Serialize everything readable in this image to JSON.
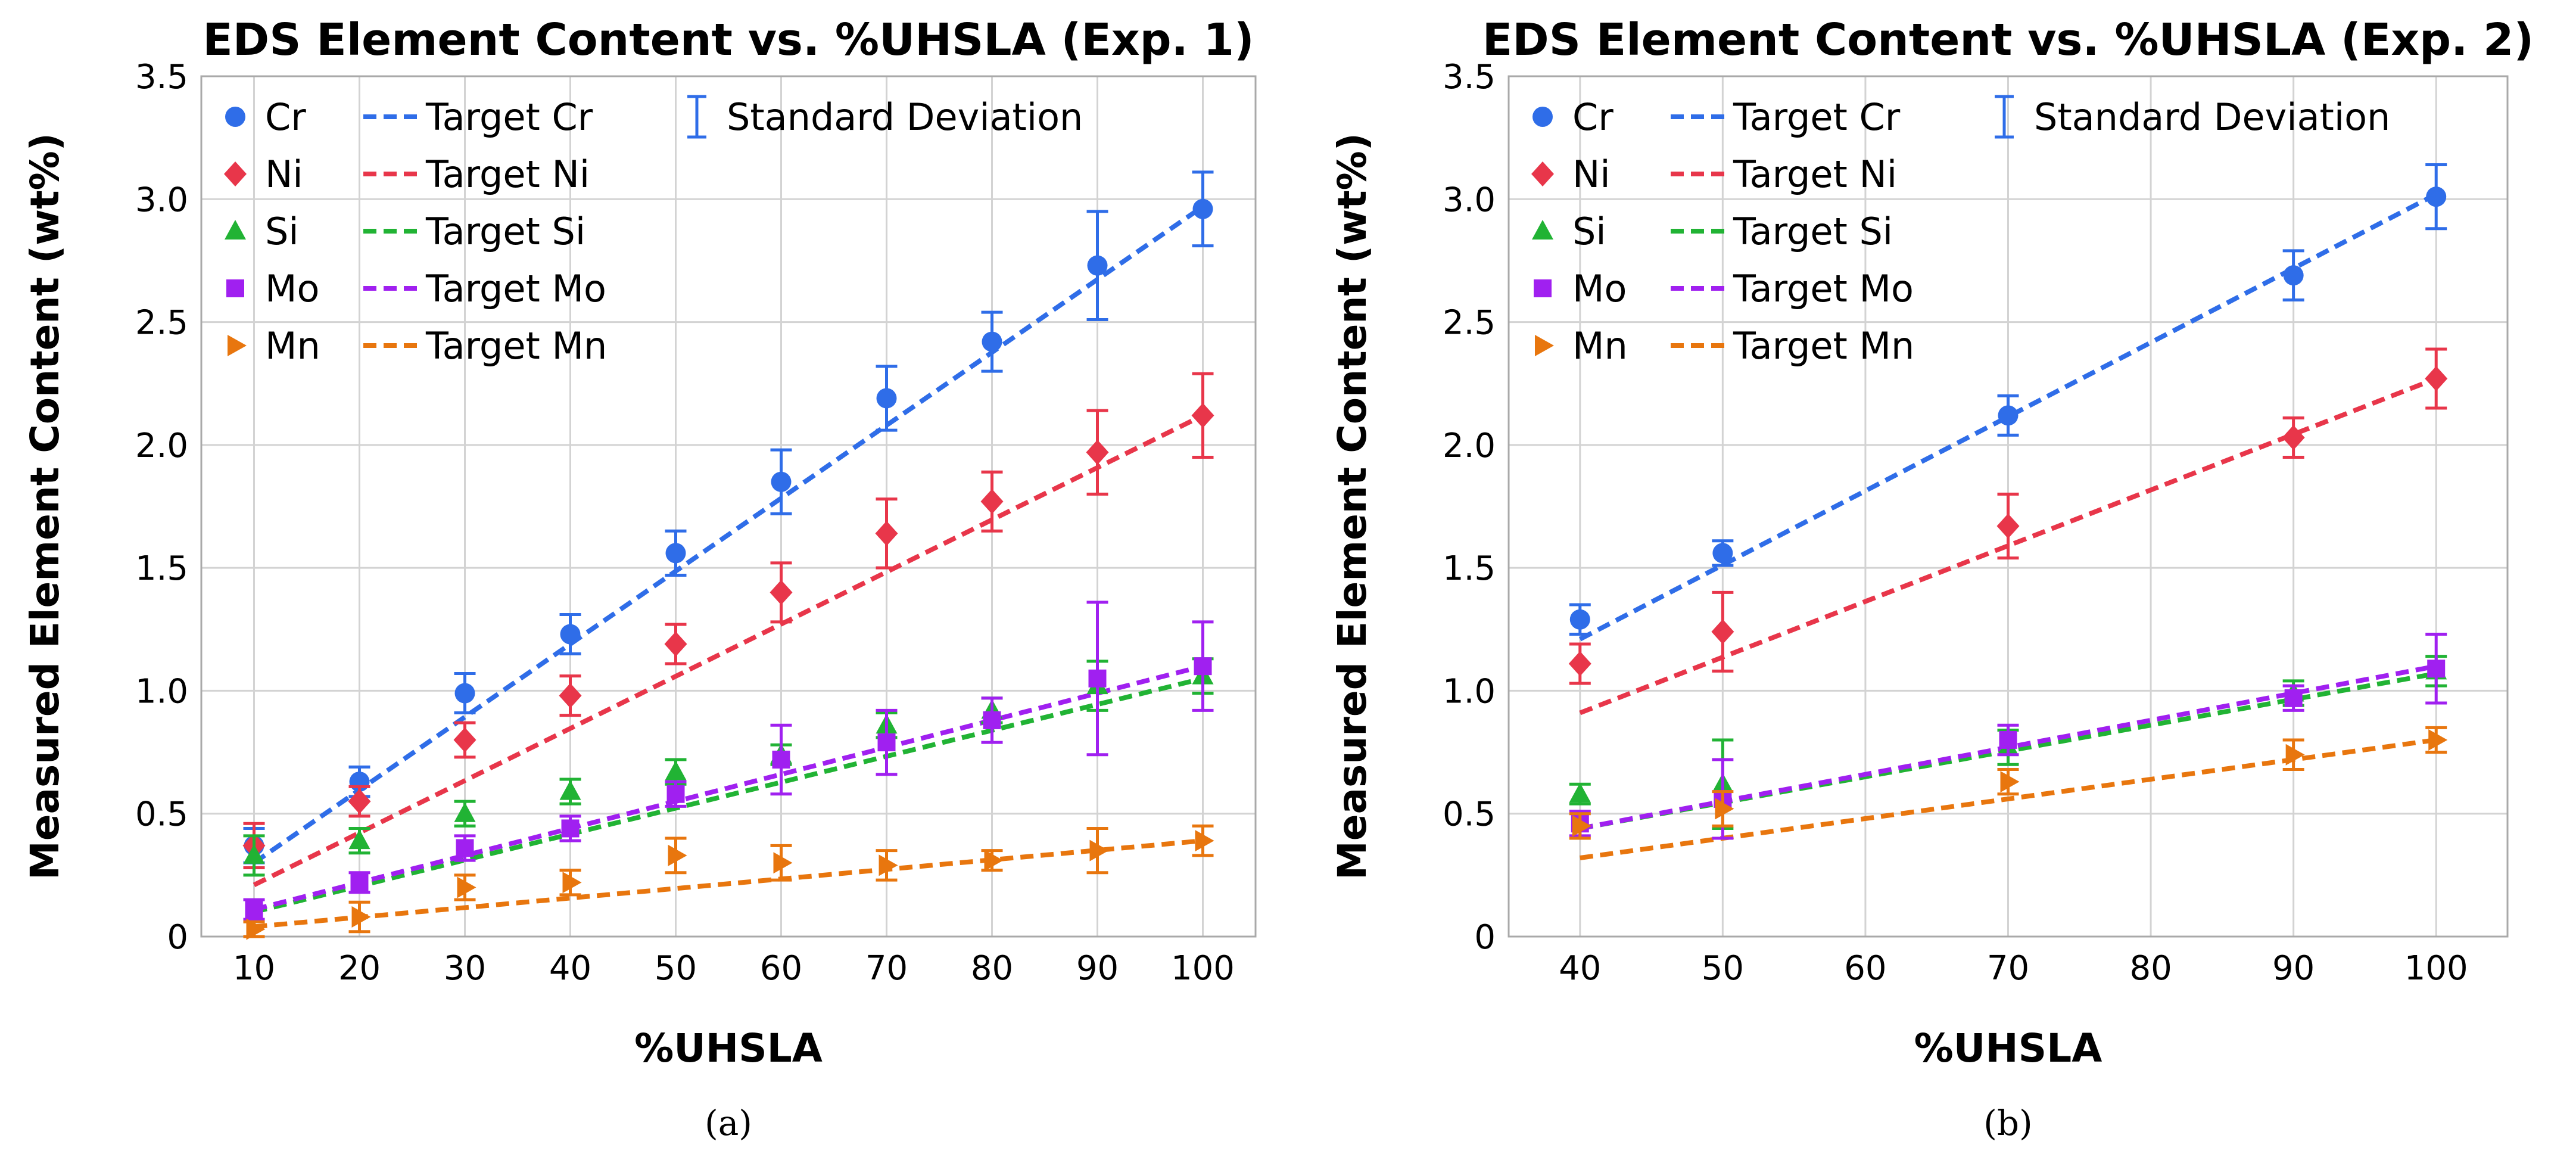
{
  "colors": {
    "Cr": "#2f6de8",
    "Ni": "#e8364a",
    "Si": "#21b334",
    "Mo": "#a020f0",
    "Mn": "#e8760e"
  },
  "legend_labels": {
    "Cr": "Cr",
    "Ni": "Ni",
    "Si": "Si",
    "Mo": "Mo",
    "Mn": "Mn",
    "target_Cr": "Target Cr",
    "target_Ni": "Target Ni",
    "target_Si": "Target Si",
    "target_Mo": "Target Mo",
    "target_Mn": "Target Mn",
    "std": "Standard Deviation"
  },
  "chart_data": [
    {
      "type": "scatter",
      "caption": "(a)",
      "title": "EDS Element Content vs. %UHSLA (Exp. 1)",
      "xlabel": "%UHSLA",
      "ylabel": "Measured Element Content (wt%)",
      "xlim": [
        5,
        105
      ],
      "ylim": [
        0,
        3.5
      ],
      "xticks": [
        10,
        20,
        30,
        40,
        50,
        60,
        70,
        80,
        90,
        100
      ],
      "yticks": [
        0,
        0.5,
        1.0,
        1.5,
        2.0,
        2.5,
        3.0,
        3.5
      ],
      "ytick_labels": [
        "0",
        "0.5",
        "1.0",
        "1.5",
        "2.0",
        "2.5",
        "3.0",
        "3.5"
      ],
      "grid": true,
      "legend_position": "top-left",
      "x": [
        10,
        20,
        30,
        40,
        50,
        60,
        70,
        80,
        90,
        100
      ],
      "series": [
        {
          "element": "Cr",
          "marker": "circle",
          "values": [
            0.37,
            0.63,
            0.99,
            1.23,
            1.56,
            1.85,
            2.19,
            2.42,
            2.73,
            2.96
          ],
          "std": [
            0.07,
            0.06,
            0.08,
            0.08,
            0.09,
            0.13,
            0.13,
            0.12,
            0.22,
            0.15
          ],
          "target": [
            0.3,
            2.97
          ]
        },
        {
          "element": "Ni",
          "marker": "diamond",
          "values": [
            0.37,
            0.55,
            0.8,
            0.98,
            1.19,
            1.4,
            1.64,
            1.77,
            1.97,
            2.12
          ],
          "std": [
            0.09,
            0.06,
            0.07,
            0.08,
            0.08,
            0.12,
            0.14,
            0.12,
            0.17,
            0.17
          ],
          "target": [
            0.21,
            2.12
          ]
        },
        {
          "element": "Si",
          "marker": "triangle",
          "values": [
            0.33,
            0.39,
            0.5,
            0.59,
            0.67,
            0.74,
            0.86,
            0.92,
            1.02,
            1.06
          ],
          "std": [
            0.08,
            0.05,
            0.05,
            0.05,
            0.05,
            0.04,
            0.05,
            0.05,
            0.1,
            0.07
          ],
          "target": [
            0.1,
            1.05
          ]
        },
        {
          "element": "Mo",
          "marker": "square",
          "values": [
            0.11,
            0.22,
            0.36,
            0.44,
            0.58,
            0.72,
            0.79,
            0.88,
            1.05,
            1.1
          ],
          "std": [
            0.04,
            0.04,
            0.05,
            0.05,
            0.05,
            0.14,
            0.13,
            0.09,
            0.31,
            0.18
          ],
          "target": [
            0.11,
            1.1
          ]
        },
        {
          "element": "Mn",
          "marker": "triangle-right",
          "values": [
            0.03,
            0.08,
            0.2,
            0.22,
            0.33,
            0.3,
            0.29,
            0.31,
            0.35,
            0.39
          ],
          "std": [
            0.03,
            0.06,
            0.05,
            0.05,
            0.07,
            0.07,
            0.06,
            0.04,
            0.09,
            0.06
          ],
          "target": [
            0.04,
            0.39
          ]
        }
      ]
    },
    {
      "type": "scatter",
      "caption": "(b)",
      "title": "EDS Element Content vs. %UHSLA (Exp. 2)",
      "xlabel": "%UHSLA",
      "ylabel": "Measured Element Content (wt%)",
      "xlim": [
        35,
        105
      ],
      "ylim": [
        0,
        3.5
      ],
      "xticks": [
        40,
        50,
        60,
        70,
        80,
        90,
        100
      ],
      "yticks": [
        0,
        0.5,
        1.0,
        1.5,
        2.0,
        2.5,
        3.0,
        3.5
      ],
      "ytick_labels": [
        "0",
        "0.5",
        "1.0",
        "1.5",
        "2.0",
        "2.5",
        "3.0",
        "3.5"
      ],
      "grid": true,
      "legend_position": "top-left",
      "x": [
        40,
        50,
        70,
        90,
        100
      ],
      "series": [
        {
          "element": "Cr",
          "marker": "circle",
          "values": [
            1.29,
            1.56,
            2.12,
            2.69,
            3.01
          ],
          "std": [
            0.06,
            0.05,
            0.08,
            0.1,
            0.13
          ],
          "target": [
            1.21,
            3.02
          ]
        },
        {
          "element": "Ni",
          "marker": "diamond",
          "values": [
            1.11,
            1.24,
            1.67,
            2.03,
            2.27
          ],
          "std": [
            0.08,
            0.16,
            0.13,
            0.08,
            0.12
          ],
          "target": [
            0.91,
            2.27
          ]
        },
        {
          "element": "Si",
          "marker": "triangle",
          "values": [
            0.58,
            0.62,
            0.77,
            0.99,
            1.08
          ],
          "std": [
            0.04,
            0.18,
            0.07,
            0.05,
            0.06
          ],
          "target": [
            0.44,
            1.07
          ]
        },
        {
          "element": "Mo",
          "marker": "square",
          "values": [
            0.46,
            0.56,
            0.8,
            0.97,
            1.09
          ],
          "std": [
            0.05,
            0.16,
            0.06,
            0.05,
            0.14
          ],
          "target": [
            0.44,
            1.1
          ]
        },
        {
          "element": "Mn",
          "marker": "triangle-right",
          "values": [
            0.45,
            0.52,
            0.63,
            0.74,
            0.8
          ],
          "std": [
            0.05,
            0.07,
            0.05,
            0.06,
            0.05
          ],
          "target": [
            0.32,
            0.8
          ]
        }
      ]
    }
  ]
}
